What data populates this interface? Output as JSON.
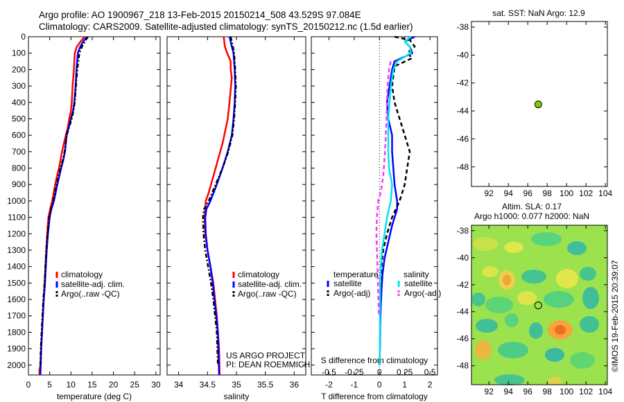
{
  "header": {
    "line1": "Argo profile: AO 1900967_218 13-Feb-2015 20150214_508 43.529S 97.084E",
    "line2": "Climatology: CARS2009. Satellite-adjusted climatology: synTS_20150212.nc (1.5d earlier)"
  },
  "colors": {
    "climatology": "#ff0000",
    "satellite": "#0000ff",
    "argo": "#000000",
    "satellite_s": "#00e5ee",
    "argo_s": "#ff33ff",
    "map_marker": "#7ccd00"
  },
  "chart_data": [
    {
      "type": "line",
      "id": "temperature",
      "xlabel": "temperature (deg C)",
      "xlim": [
        0,
        31
      ],
      "xticks": [
        0,
        5,
        10,
        15,
        20,
        25,
        30
      ],
      "ylim": [
        0,
        2060
      ],
      "yticks": [
        0,
        100,
        200,
        300,
        400,
        500,
        600,
        700,
        800,
        900,
        1000,
        1100,
        1200,
        1300,
        1400,
        1500,
        1600,
        1700,
        1800,
        1900,
        2000
      ],
      "legend": [
        "climatology",
        "satellite-adj. clim.",
        "Argo(..raw -QC)"
      ],
      "series": [
        {
          "name": "climatology",
          "x": [
            13.2,
            12.4,
            11.4,
            10.9,
            10.7,
            10.4,
            10.2,
            10.0,
            9.6,
            9.3,
            8.8,
            7.9,
            7.2,
            6.7,
            6.3,
            5.6,
            5.1,
            4.7,
            4.4,
            4.2,
            4.0,
            3.8,
            3.6,
            3.4,
            3.2,
            3.0,
            2.8,
            2.6,
            2.6
          ],
          "y": [
            0,
            25,
            60,
            100,
            200,
            300,
            400,
            450,
            500,
            550,
            600,
            700,
            800,
            850,
            900,
            1000,
            1050,
            1100,
            1200,
            1300,
            1400,
            1500,
            1600,
            1700,
            1800,
            1900,
            2000,
            2030,
            2060
          ]
        },
        {
          "name": "satellite-adj. clim.",
          "x": [
            13.8,
            13.0,
            12.2,
            11.6,
            11.3,
            11.1,
            10.8,
            10.5,
            10.0,
            9.5,
            9.0,
            8.6,
            8.2,
            7.7,
            6.8,
            6.0,
            5.4,
            5.0,
            4.6,
            4.3,
            4.1,
            3.9,
            3.6,
            3.4,
            3.2,
            3.0,
            2.9,
            2.8
          ],
          "y": [
            0,
            25,
            60,
            100,
            200,
            300,
            400,
            450,
            500,
            550,
            600,
            700,
            750,
            800,
            900,
            1000,
            1050,
            1100,
            1200,
            1300,
            1400,
            1500,
            1600,
            1700,
            1800,
            1900,
            2000,
            2060
          ]
        },
        {
          "name": "Argo(..raw -QC)",
          "x": [
            14.0,
            13.4,
            12.6,
            12.0,
            11.5,
            11.2,
            10.9,
            10.6,
            10.2,
            9.6,
            9.0,
            8.5,
            8.1,
            7.5,
            6.6,
            5.8,
            5.3,
            4.9,
            4.5,
            4.2,
            4.0,
            3.8,
            3.5,
            3.3,
            3.1,
            2.9,
            2.8
          ],
          "y": [
            0,
            25,
            60,
            100,
            200,
            300,
            400,
            450,
            500,
            550,
            600,
            700,
            750,
            800,
            900,
            1000,
            1050,
            1100,
            1200,
            1300,
            1400,
            1500,
            1600,
            1700,
            1800,
            1900,
            2000
          ]
        }
      ]
    },
    {
      "type": "line",
      "id": "salinity",
      "xlabel": "salinity",
      "xlim": [
        33.8,
        36.2
      ],
      "xticks": [
        34,
        34.5,
        35,
        35.5,
        36
      ],
      "ylim": [
        0,
        2060
      ],
      "legend": [
        "climatology",
        "satellite-adj. clim.",
        "Argo(..raw -QC)"
      ],
      "series": [
        {
          "name": "climatology",
          "x": [
            34.78,
            34.8,
            34.84,
            34.9,
            34.9,
            34.92,
            34.88,
            34.85,
            34.82,
            34.76,
            34.68,
            34.6,
            34.52,
            34.47,
            34.45,
            34.46,
            34.5,
            34.55,
            34.6,
            34.63,
            34.66,
            34.68,
            34.7,
            34.71
          ],
          "y": [
            0,
            60,
            100,
            150,
            200,
            250,
            400,
            500,
            550,
            650,
            750,
            850,
            950,
            1000,
            1100,
            1200,
            1300,
            1400,
            1500,
            1600,
            1700,
            1800,
            1900,
            2060
          ]
        },
        {
          "name": "satellite-adj. clim.",
          "x": [
            34.88,
            34.92,
            34.95,
            34.97,
            34.98,
            34.97,
            34.95,
            34.92,
            34.85,
            34.76,
            34.66,
            34.55,
            34.48,
            34.46,
            34.47,
            34.5,
            34.55,
            34.59,
            34.62,
            34.65,
            34.68,
            34.7
          ],
          "y": [
            0,
            60,
            100,
            200,
            300,
            400,
            500,
            600,
            700,
            800,
            900,
            1000,
            1050,
            1100,
            1200,
            1300,
            1400,
            1500,
            1600,
            1700,
            1800,
            2060
          ]
        },
        {
          "name": "Argo(..raw -QC)",
          "x": [
            34.9,
            34.94,
            34.96,
            34.98,
            34.99,
            34.98,
            34.96,
            34.93,
            34.86,
            34.76,
            34.64,
            34.52,
            34.44,
            34.42,
            34.43,
            34.46,
            34.51,
            34.56,
            34.6,
            34.63,
            34.66,
            34.68
          ],
          "y": [
            0,
            60,
            100,
            200,
            300,
            400,
            500,
            600,
            700,
            800,
            900,
            1000,
            1050,
            1100,
            1200,
            1300,
            1400,
            1500,
            1600,
            1700,
            1800,
            2000
          ]
        }
      ]
    },
    {
      "type": "line",
      "id": "difference",
      "xlabel": "T difference from climatology",
      "xticks": [
        -2,
        -1,
        0,
        1,
        2
      ],
      "s_axis_label": "S difference from climatology",
      "s_ticks": [
        "-0.5",
        "-0.25",
        "0",
        "0.25",
        "0.5"
      ],
      "xlim": [
        -2.7,
        2.3
      ],
      "ylim": [
        0,
        2060
      ],
      "legend": {
        "temperature_title": "temperature",
        "salinity_title": "salinity",
        "items": [
          "satellite",
          "Argo(-adj)",
          "satellite",
          "Argo(-adj)"
        ]
      },
      "series": [
        {
          "name": "satellite",
          "x": [
            1.4,
            1.0,
            1.2,
            1.3,
            0.6,
            0.5,
            0.4,
            0.3,
            0.35,
            0.5,
            0.5,
            0.55,
            0.6,
            0.7,
            0.7,
            0.5,
            0.35,
            0.2,
            0.12,
            0.08,
            0.05,
            0.03,
            0.02,
            0.0
          ],
          "y": [
            0,
            30,
            60,
            100,
            150,
            200,
            300,
            400,
            500,
            600,
            700,
            800,
            900,
            1000,
            1050,
            1150,
            1250,
            1350,
            1450,
            1550,
            1650,
            1750,
            1900,
            2000
          ]
        },
        {
          "name": "Argo(-adj)",
          "x": [
            0.6,
            1.2,
            1.4,
            1.1,
            1.3,
            0.6,
            0.5,
            0.6,
            0.8,
            1.0,
            1.2,
            1.1,
            1.0,
            0.8,
            0.5,
            0.3,
            0.15,
            0.08,
            0.05,
            0.03,
            0.02
          ],
          "y": [
            0,
            20,
            60,
            100,
            130,
            180,
            300,
            400,
            500,
            600,
            700,
            800,
            900,
            1000,
            1100,
            1200,
            1300,
            1400,
            1500,
            1600,
            1700
          ]
        },
        {
          "name": "satellite",
          "x": [
            1.25,
            1.0,
            1.2,
            1.25,
            0.7,
            0.55,
            0.45,
            0.4,
            0.35,
            0.35,
            0.35,
            0.38,
            0.5,
            0.45,
            0.3,
            0.2,
            0.1,
            0.05,
            0.03,
            0.02,
            0.01
          ],
          "y": [
            0,
            30,
            60,
            100,
            150,
            200,
            300,
            400,
            500,
            600,
            700,
            800,
            900,
            1000,
            1100,
            1200,
            1300,
            1400,
            1500,
            1700,
            2000
          ]
        },
        {
          "name": "Argo(-adj)",
          "x": [
            0.45,
            0.38,
            0.32,
            0.28,
            0.22,
            0.15,
            0.05,
            -0.05,
            -0.1,
            -0.12,
            -0.1,
            -0.08,
            -0.06,
            -0.04,
            -0.02
          ],
          "y": [
            150,
            200,
            300,
            500,
            700,
            850,
            950,
            1000,
            1100,
            1200,
            1300,
            1400,
            1500,
            1600,
            1700
          ]
        }
      ]
    },
    {
      "type": "scatter",
      "id": "sst-map",
      "title": "sat. SST: NaN Argo: 12.9",
      "xlim": [
        90.2,
        104.2
      ],
      "ylim": [
        -49.4,
        -37.6
      ],
      "xticks": [
        92,
        94,
        96,
        98,
        100,
        102,
        104
      ],
      "yticks": [
        -38,
        -40,
        -42,
        -44,
        -46,
        -48
      ],
      "points": [
        {
          "x": 97.084,
          "y": -43.529
        }
      ]
    },
    {
      "type": "heatmap",
      "id": "sla-map",
      "title_line1": "Altim. SLA: 0.17",
      "title_line2": "Argo h1000: 0.077 h2000: NaN",
      "xlim": [
        90.2,
        104.2
      ],
      "ylim": [
        -49.4,
        -37.6
      ],
      "xticks": [
        92,
        94,
        96,
        98,
        100,
        102,
        104
      ],
      "yticks": [
        -38,
        -40,
        -42,
        -44,
        -46,
        -48
      ],
      "points": [
        {
          "x": 97.084,
          "y": -43.529
        }
      ]
    }
  ],
  "annotations": {
    "project": "US ARGO PROJECT",
    "pi": "PI: DEAN ROEMMICH",
    "watermark": "©IMOS 19-Feb-2015 20:39:07"
  }
}
